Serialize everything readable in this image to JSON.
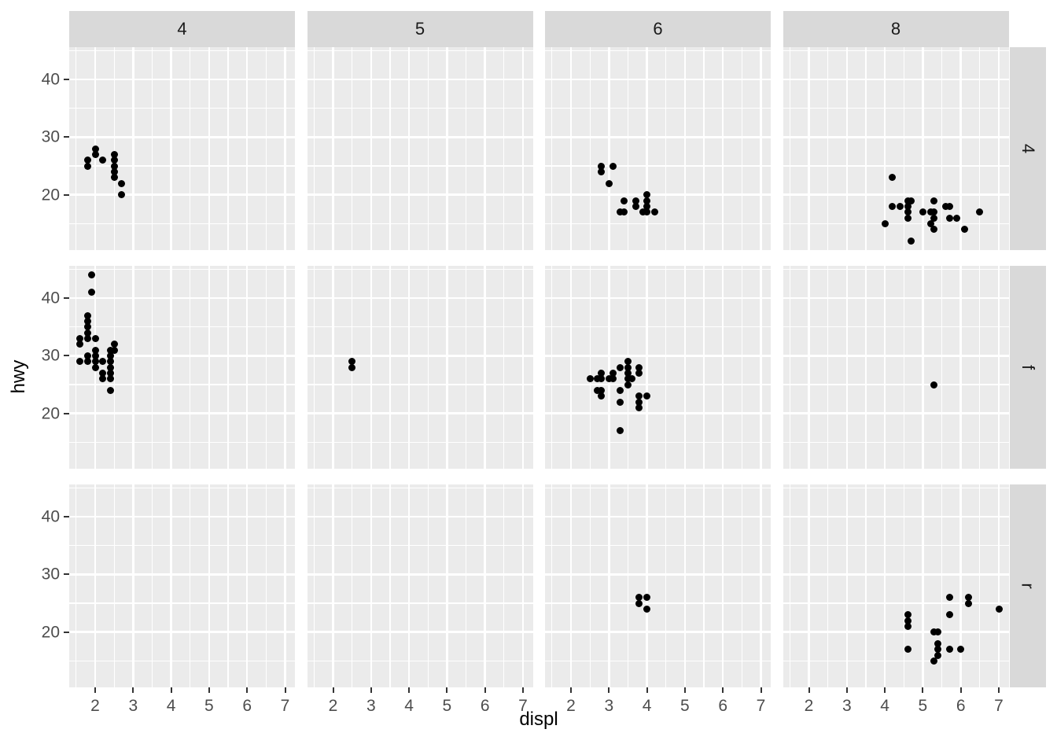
{
  "chart_data": {
    "type": "scatter",
    "title": "",
    "xlabel": "displ",
    "ylabel": "hwy",
    "x_ticks": [
      "2",
      "3",
      "4",
      "5",
      "6",
      "7"
    ],
    "y_ticks": [
      "20",
      "30",
      "40"
    ],
    "x_tick_values": [
      2,
      3,
      4,
      5,
      6,
      7
    ],
    "y_tick_values": [
      20,
      30,
      40
    ],
    "x_minor_values": [
      1.5,
      2.5,
      3.5,
      4.5,
      5.5,
      6.5
    ],
    "y_minor_values": [
      15,
      25,
      35,
      45
    ],
    "x_range": [
      1.317,
      7.258
    ],
    "y_range": [
      10.42,
      45.58
    ],
    "grid": "on",
    "legend": "none",
    "facet": {
      "col_levels": [
        "4",
        "5",
        "6",
        "8"
      ],
      "row_levels": [
        "4",
        "f",
        "r"
      ]
    },
    "style": {
      "panel_bg": "#EBEBEB",
      "strip_bg": "#D9D9D9",
      "gridline": "#FFFFFF",
      "point": "#000000",
      "tick_label": "#4D4D4D",
      "strip_text": "#1A1A1A",
      "axis_title": "#000000",
      "tick_mark": "#333333"
    },
    "panels": [
      {
        "cyl": "4",
        "drv": "4",
        "points": [
          [
            1.8,
            26
          ],
          [
            1.8,
            25
          ],
          [
            2.0,
            28
          ],
          [
            2.0,
            27
          ],
          [
            2.2,
            26
          ],
          [
            2.5,
            27
          ],
          [
            2.5,
            26
          ],
          [
            2.5,
            25
          ],
          [
            2.5,
            24
          ],
          [
            2.5,
            23
          ],
          [
            2.7,
            22
          ],
          [
            2.7,
            20
          ]
        ]
      },
      {
        "cyl": "5",
        "drv": "4",
        "points": []
      },
      {
        "cyl": "6",
        "drv": "4",
        "points": [
          [
            2.8,
            25
          ],
          [
            2.8,
            24
          ],
          [
            3.0,
            22
          ],
          [
            3.1,
            25
          ],
          [
            3.3,
            17
          ],
          [
            3.4,
            19
          ],
          [
            3.4,
            17
          ],
          [
            3.7,
            19
          ],
          [
            3.7,
            18
          ],
          [
            3.9,
            17
          ],
          [
            4.0,
            20
          ],
          [
            4.0,
            19
          ],
          [
            4.0,
            18
          ],
          [
            4.0,
            17
          ],
          [
            4.2,
            17
          ]
        ]
      },
      {
        "cyl": "8",
        "drv": "4",
        "points": [
          [
            4.0,
            15
          ],
          [
            4.2,
            23
          ],
          [
            4.2,
            18
          ],
          [
            4.4,
            18
          ],
          [
            4.6,
            19
          ],
          [
            4.6,
            18
          ],
          [
            4.6,
            17
          ],
          [
            4.6,
            16
          ],
          [
            4.7,
            19
          ],
          [
            4.7,
            12
          ],
          [
            5.0,
            17
          ],
          [
            5.2,
            17
          ],
          [
            5.2,
            15
          ],
          [
            5.3,
            19
          ],
          [
            5.3,
            17
          ],
          [
            5.3,
            16
          ],
          [
            5.3,
            14
          ],
          [
            5.6,
            18
          ],
          [
            5.7,
            18
          ],
          [
            5.7,
            16
          ],
          [
            5.9,
            16
          ],
          [
            6.1,
            14
          ],
          [
            6.5,
            17
          ]
        ]
      },
      {
        "cyl": "4",
        "drv": "f",
        "points": [
          [
            1.6,
            33
          ],
          [
            1.6,
            32
          ],
          [
            1.6,
            29
          ],
          [
            1.8,
            37
          ],
          [
            1.8,
            36
          ],
          [
            1.8,
            35
          ],
          [
            1.8,
            34
          ],
          [
            1.8,
            33
          ],
          [
            1.8,
            30
          ],
          [
            1.8,
            29
          ],
          [
            1.9,
            44
          ],
          [
            1.9,
            41
          ],
          [
            2.0,
            33
          ],
          [
            2.0,
            31
          ],
          [
            2.0,
            30
          ],
          [
            2.0,
            29
          ],
          [
            2.0,
            28
          ],
          [
            2.2,
            29
          ],
          [
            2.2,
            27
          ],
          [
            2.2,
            26
          ],
          [
            2.4,
            31
          ],
          [
            2.4,
            30
          ],
          [
            2.4,
            29
          ],
          [
            2.4,
            28
          ],
          [
            2.4,
            27
          ],
          [
            2.4,
            26
          ],
          [
            2.4,
            24
          ],
          [
            2.5,
            32
          ],
          [
            2.5,
            31
          ]
        ]
      },
      {
        "cyl": "5",
        "drv": "f",
        "points": [
          [
            2.5,
            29
          ],
          [
            2.5,
            28
          ]
        ]
      },
      {
        "cyl": "6",
        "drv": "f",
        "points": [
          [
            2.5,
            26
          ],
          [
            2.7,
            26
          ],
          [
            2.7,
            24
          ],
          [
            2.8,
            27
          ],
          [
            2.8,
            26
          ],
          [
            2.8,
            24
          ],
          [
            2.8,
            23
          ],
          [
            3.0,
            26
          ],
          [
            3.1,
            27
          ],
          [
            3.1,
            26
          ],
          [
            3.3,
            28
          ],
          [
            3.3,
            24
          ],
          [
            3.3,
            22
          ],
          [
            3.3,
            17
          ],
          [
            3.5,
            29
          ],
          [
            3.5,
            28
          ],
          [
            3.5,
            27
          ],
          [
            3.5,
            26
          ],
          [
            3.5,
            25
          ],
          [
            3.6,
            26
          ],
          [
            3.8,
            28
          ],
          [
            3.8,
            27
          ],
          [
            3.8,
            23
          ],
          [
            3.8,
            22
          ],
          [
            3.8,
            21
          ],
          [
            4.0,
            23
          ]
        ]
      },
      {
        "cyl": "8",
        "drv": "f",
        "points": [
          [
            5.3,
            25
          ]
        ]
      },
      {
        "cyl": "4",
        "drv": "r",
        "points": []
      },
      {
        "cyl": "5",
        "drv": "r",
        "points": []
      },
      {
        "cyl": "6",
        "drv": "r",
        "points": [
          [
            3.8,
            26
          ],
          [
            3.8,
            25
          ],
          [
            4.0,
            26
          ],
          [
            4.0,
            24
          ]
        ]
      },
      {
        "cyl": "8",
        "drv": "r",
        "points": [
          [
            4.6,
            23
          ],
          [
            4.6,
            22
          ],
          [
            4.6,
            21
          ],
          [
            4.6,
            17
          ],
          [
            5.3,
            20
          ],
          [
            5.4,
            20
          ],
          [
            5.4,
            18
          ],
          [
            5.4,
            17
          ],
          [
            5.4,
            16
          ],
          [
            5.3,
            15
          ],
          [
            5.7,
            26
          ],
          [
            5.7,
            23
          ],
          [
            5.7,
            17
          ],
          [
            6.0,
            17
          ],
          [
            6.2,
            26
          ],
          [
            6.2,
            25
          ],
          [
            7.0,
            24
          ]
        ]
      }
    ]
  }
}
